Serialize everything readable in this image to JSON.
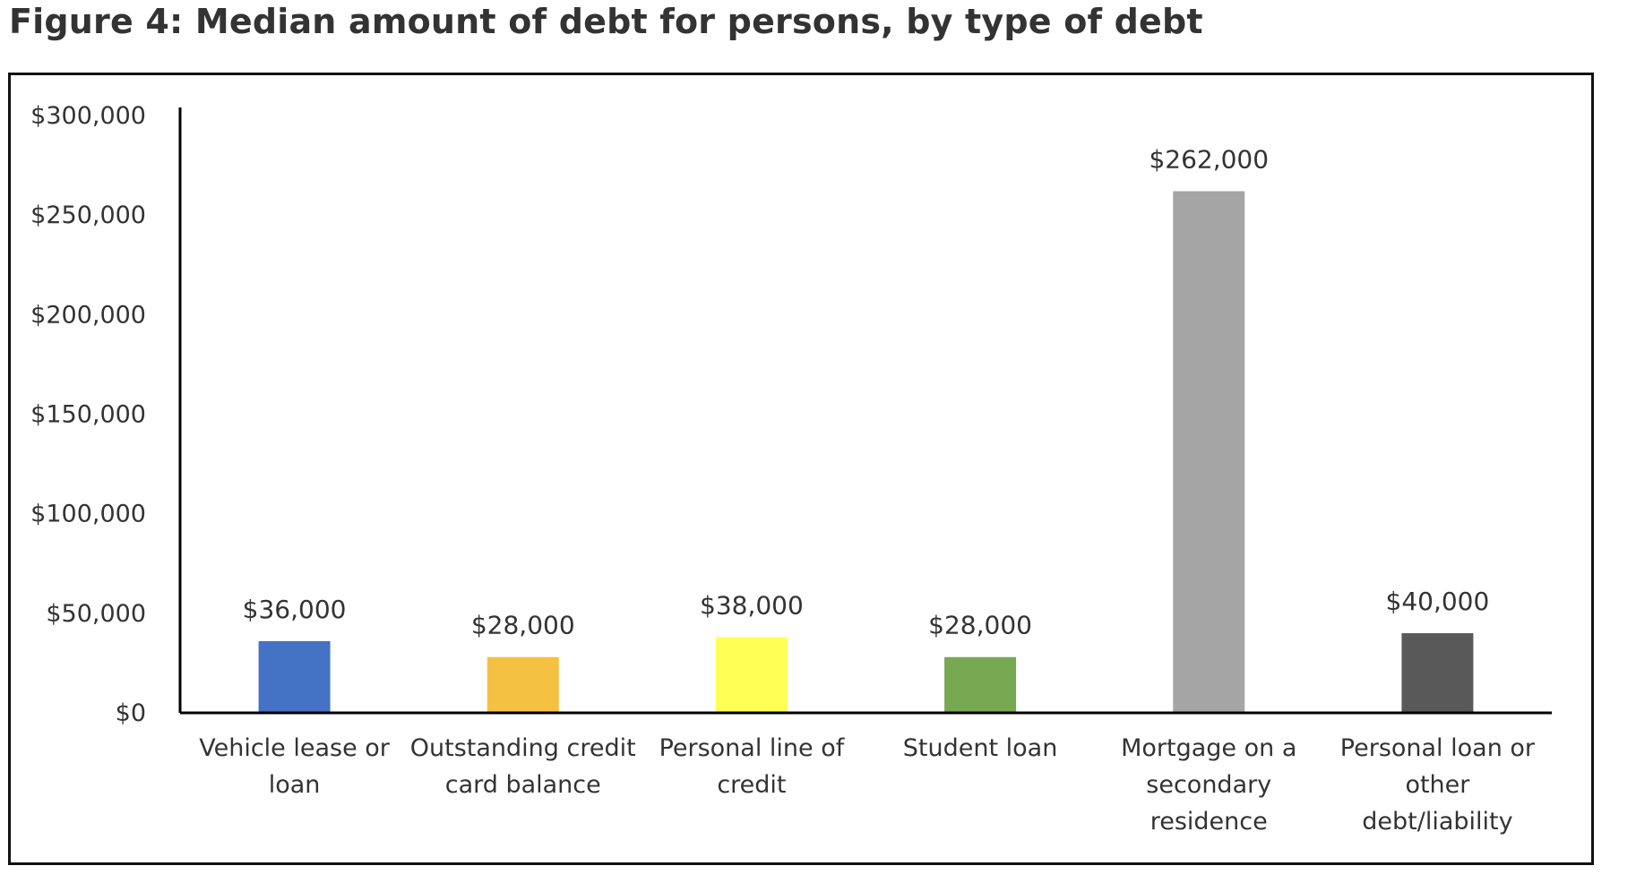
{
  "title": "Figure 4: Median amount of debt for persons, by type of debt",
  "chart_data": {
    "type": "bar",
    "categories": [
      [
        "Vehicle lease or",
        "loan"
      ],
      [
        "Outstanding credit",
        "card balance"
      ],
      [
        "Personal line of",
        "credit"
      ],
      [
        "Student loan"
      ],
      [
        "Mortgage on a",
        "secondary",
        "residence"
      ],
      [
        "Personal loan or",
        "other",
        "debt/liability"
      ]
    ],
    "values": [
      36000,
      28000,
      38000,
      28000,
      262000,
      40000
    ],
    "data_labels": [
      "$36,000",
      "$28,000",
      "$38,000",
      "$28,000",
      "$262,000",
      "$40,000"
    ],
    "colors": [
      "#4472c4",
      "#f5c142",
      "#ffff55",
      "#77a852",
      "#a5a5a5",
      "#595959"
    ],
    "ylim": [
      0,
      300000
    ],
    "yticks": [
      0,
      50000,
      100000,
      150000,
      200000,
      250000,
      300000
    ],
    "ytick_labels": [
      "$0",
      "$50,000",
      "$100,000",
      "$150,000",
      "$200,000",
      "$250,000",
      "$300,000"
    ],
    "xlabel": "",
    "ylabel": "",
    "grid": false,
    "legend": "none"
  }
}
